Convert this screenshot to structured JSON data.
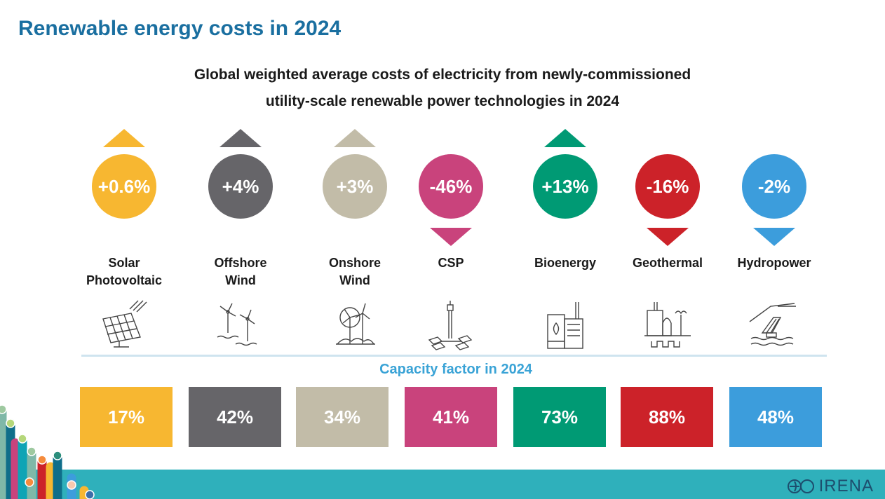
{
  "header": {
    "title": "Renewable energy costs in 2024",
    "subtitle_line1": "Global weighted average costs of electricity from newly-commissioned",
    "subtitle_line2": "utility-scale renewable power technologies in 2024"
  },
  "technologies": [
    {
      "name_line1": "Solar",
      "name_line2": "Photovoltaic",
      "change": "+0.6%",
      "direction": "up",
      "color": "#f7b731",
      "arrow_color": "#f7b731",
      "capacity_factor": "17%",
      "icon": "solar-panel-icon"
    },
    {
      "name_line1": "Offshore",
      "name_line2": "Wind",
      "change": "+4%",
      "direction": "up",
      "color": "#666569",
      "arrow_color": "#666569",
      "capacity_factor": "42%",
      "icon": "offshore-wind-icon"
    },
    {
      "name_line1": "Onshore",
      "name_line2": "Wind",
      "change": "+3%",
      "direction": "up",
      "color": "#c2bca8",
      "arrow_color": "#c2bca8",
      "capacity_factor": "34%",
      "icon": "onshore-wind-icon"
    },
    {
      "name_line1": "CSP",
      "name_line2": "",
      "change": "-46%",
      "direction": "down",
      "color": "#c9437c",
      "arrow_color": "#c9437c",
      "capacity_factor": "41%",
      "icon": "csp-tower-icon"
    },
    {
      "name_line1": "Bioenergy",
      "name_line2": "",
      "change": "+13%",
      "direction": "up",
      "color": "#009a74",
      "arrow_color": "#009a74",
      "capacity_factor": "73%",
      "icon": "bioenergy-plant-icon"
    },
    {
      "name_line1": "Geothermal",
      "name_line2": "",
      "change": "-16%",
      "direction": "down",
      "color": "#cc2229",
      "arrow_color": "#cc2229",
      "capacity_factor": "88%",
      "icon": "geothermal-plant-icon"
    },
    {
      "name_line1": "Hydropower",
      "name_line2": "",
      "change": "-2%",
      "direction": "down",
      "color": "#3c9ddc",
      "arrow_color": "#3c9ddc",
      "capacity_factor": "48%",
      "icon": "hydropower-dam-icon"
    }
  ],
  "capacity_factor_title": "Capacity factor in 2024",
  "footer": {
    "logo_text": "IRENA",
    "band_color": "#2fb0bb"
  }
}
